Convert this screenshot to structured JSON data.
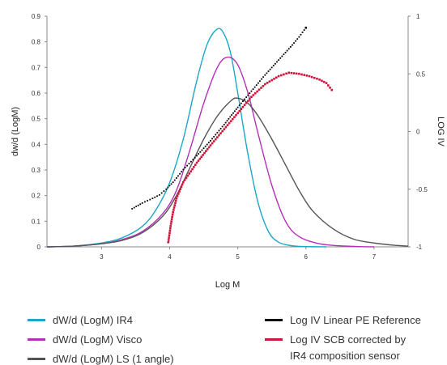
{
  "chart_data": {
    "type": "line",
    "xlabel": "Log M",
    "ylabel": "dw/d (LogM)",
    "y2label": "LOG IV",
    "xlim": [
      2.2,
      7.5
    ],
    "ylim": [
      0,
      0.9
    ],
    "y2lim": [
      -1,
      1
    ],
    "x_ticks": [
      3,
      4,
      5,
      6,
      7
    ],
    "y_ticks": [
      0,
      0.1,
      0.2,
      0.3,
      0.4,
      0.5,
      0.6,
      0.7,
      0.8,
      0.9
    ],
    "y2_ticks": [
      -1,
      -0.5,
      0,
      0.5,
      1
    ],
    "grid": false,
    "legend_position": "bottom",
    "series": [
      {
        "name": "dW/d (LogM) IR4",
        "axis": "left",
        "color": "#1aa7c9",
        "style": "line",
        "x": [
          2.2,
          2.6,
          3.0,
          3.3,
          3.6,
          3.8,
          4.0,
          4.2,
          4.4,
          4.55,
          4.7,
          4.8,
          4.9,
          5.0,
          5.15,
          5.3,
          5.45,
          5.6,
          5.8,
          6.0,
          6.3
        ],
        "y": [
          0.0,
          0.003,
          0.015,
          0.035,
          0.08,
          0.145,
          0.25,
          0.42,
          0.65,
          0.79,
          0.85,
          0.83,
          0.75,
          0.6,
          0.36,
          0.17,
          0.06,
          0.018,
          0.004,
          0.001,
          0.0
        ]
      },
      {
        "name": "dW/d (LogM) Visco",
        "axis": "left",
        "color": "#b52fb8",
        "style": "line",
        "x": [
          2.2,
          2.6,
          3.0,
          3.3,
          3.6,
          3.9,
          4.1,
          4.3,
          4.5,
          4.7,
          4.85,
          5.0,
          5.15,
          5.3,
          5.5,
          5.7,
          5.9,
          6.2,
          6.5,
          6.8,
          7.0
        ],
        "y": [
          0.0,
          0.003,
          0.012,
          0.028,
          0.06,
          0.13,
          0.22,
          0.38,
          0.56,
          0.7,
          0.74,
          0.71,
          0.6,
          0.44,
          0.24,
          0.1,
          0.04,
          0.012,
          0.004,
          0.001,
          0.0
        ]
      },
      {
        "name": "dW/d (LogM) LS (1 angle)",
        "axis": "left",
        "color": "#555555",
        "style": "line",
        "x": [
          2.2,
          2.6,
          3.0,
          3.3,
          3.6,
          3.9,
          4.1,
          4.3,
          4.5,
          4.7,
          4.9,
          5.0,
          5.15,
          5.3,
          5.5,
          5.7,
          5.9,
          6.1,
          6.4,
          6.7,
          7.0,
          7.3,
          7.5
        ],
        "y": [
          0.0,
          0.003,
          0.012,
          0.025,
          0.055,
          0.12,
          0.2,
          0.31,
          0.42,
          0.51,
          0.57,
          0.58,
          0.56,
          0.51,
          0.42,
          0.32,
          0.22,
          0.14,
          0.07,
          0.03,
          0.015,
          0.006,
          0.003
        ]
      },
      {
        "name": "Log IV Linear PE Reference",
        "axis": "right",
        "color": "#000000",
        "style": "dots",
        "x": [
          3.45,
          3.6,
          3.75,
          3.85,
          3.95,
          4.05,
          4.2,
          4.4,
          4.6,
          4.8,
          5.0,
          5.2,
          5.4,
          5.6,
          5.8,
          5.9,
          5.95,
          6.0
        ],
        "y": [
          -0.67,
          -0.62,
          -0.58,
          -0.55,
          -0.5,
          -0.44,
          -0.33,
          -0.21,
          -0.08,
          0.06,
          0.21,
          0.35,
          0.49,
          0.62,
          0.75,
          0.82,
          0.86,
          0.9
        ]
      },
      {
        "name": "Log IV SCB corrected by IR4 composition sensor",
        "axis": "right",
        "color": "#d1143a",
        "style": "dots",
        "x": [
          3.98,
          4.0,
          4.02,
          4.05,
          4.1,
          4.2,
          4.4,
          4.6,
          4.8,
          5.0,
          5.2,
          5.4,
          5.6,
          5.75,
          5.9,
          6.05,
          6.2,
          6.3,
          6.38
        ],
        "y": [
          -0.96,
          -0.88,
          -0.8,
          -0.7,
          -0.58,
          -0.44,
          -0.27,
          -0.12,
          0.02,
          0.16,
          0.3,
          0.41,
          0.48,
          0.51,
          0.5,
          0.48,
          0.45,
          0.42,
          0.36
        ]
      }
    ]
  },
  "legend": {
    "left": [
      {
        "label": "dW/d (LogM) IR4",
        "color": "#1aa7c9"
      },
      {
        "label": "dW/d (LogM) Visco",
        "color": "#b52fb8"
      },
      {
        "label": "dW/d (LogM) LS (1 angle)",
        "color": "#555555"
      }
    ],
    "right": [
      {
        "label": "Log IV Linear PE Reference",
        "color": "#000000"
      },
      {
        "label": "Log IV SCB corrected by",
        "color": "#d1143a"
      }
    ],
    "right_continuation": "IR4 composition sensor"
  }
}
